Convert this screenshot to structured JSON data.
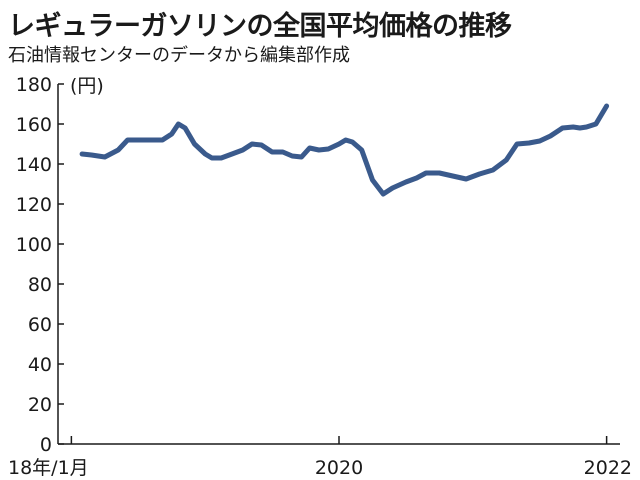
{
  "title": "レギュラーガソリンの全国平均価格の推移",
  "subtitle": "石油情報センターのデータから編集部作成",
  "chart_data": {
    "type": "line",
    "ylabel": "(円)",
    "ylim": [
      0,
      180
    ],
    "y_ticks": [
      0,
      20,
      40,
      60,
      80,
      100,
      120,
      140,
      160,
      180
    ],
    "x_range": [
      2017.9,
      2022.1
    ],
    "x_ticks": [
      {
        "x": 2018.0,
        "label": "18年/1月"
      },
      {
        "x": 2020.0,
        "label": "2020"
      },
      {
        "x": 2022.0,
        "label": "2022"
      }
    ],
    "grid": false,
    "series": [
      {
        "color": "#3a5a8c",
        "points": [
          [
            2018.08,
            145
          ],
          [
            2018.15,
            144.5
          ],
          [
            2018.25,
            143.5
          ],
          [
            2018.35,
            147
          ],
          [
            2018.42,
            152
          ],
          [
            2018.5,
            152
          ],
          [
            2018.6,
            152
          ],
          [
            2018.68,
            152
          ],
          [
            2018.75,
            155
          ],
          [
            2018.8,
            160
          ],
          [
            2018.85,
            158
          ],
          [
            2018.92,
            150
          ],
          [
            2019.0,
            145
          ],
          [
            2019.05,
            143
          ],
          [
            2019.12,
            143
          ],
          [
            2019.2,
            145
          ],
          [
            2019.28,
            147
          ],
          [
            2019.35,
            150
          ],
          [
            2019.42,
            149.5
          ],
          [
            2019.5,
            146
          ],
          [
            2019.58,
            146
          ],
          [
            2019.65,
            144
          ],
          [
            2019.72,
            143.5
          ],
          [
            2019.78,
            148
          ],
          [
            2019.85,
            147
          ],
          [
            2019.92,
            147.5
          ],
          [
            2020.0,
            150
          ],
          [
            2020.05,
            152
          ],
          [
            2020.1,
            151
          ],
          [
            2020.17,
            147
          ],
          [
            2020.25,
            132
          ],
          [
            2020.33,
            125
          ],
          [
            2020.4,
            128
          ],
          [
            2020.5,
            131
          ],
          [
            2020.58,
            133
          ],
          [
            2020.65,
            135.5
          ],
          [
            2020.75,
            135.5
          ],
          [
            2020.85,
            134
          ],
          [
            2020.95,
            132.5
          ],
          [
            2021.05,
            135
          ],
          [
            2021.15,
            137
          ],
          [
            2021.25,
            142
          ],
          [
            2021.33,
            150
          ],
          [
            2021.42,
            150.5
          ],
          [
            2021.5,
            151.5
          ],
          [
            2021.58,
            154
          ],
          [
            2021.67,
            158
          ],
          [
            2021.75,
            158.5
          ],
          [
            2021.8,
            158
          ],
          [
            2021.85,
            158.5
          ],
          [
            2021.92,
            160
          ],
          [
            2022.0,
            169
          ]
        ]
      }
    ]
  }
}
